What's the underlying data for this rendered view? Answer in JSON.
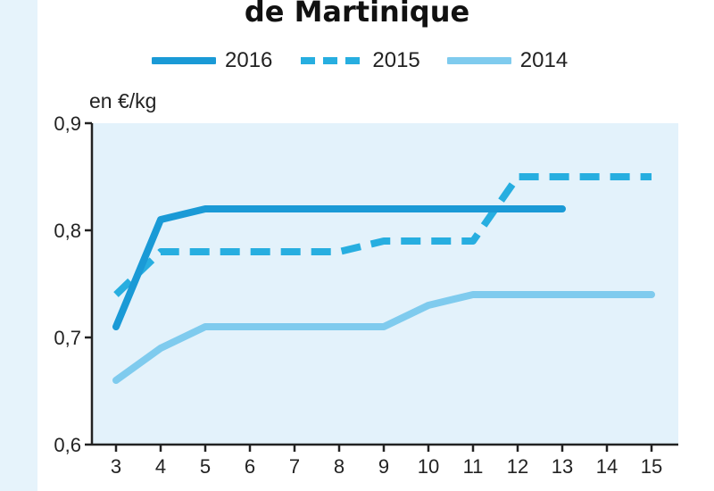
{
  "title": "de Martinique",
  "unit_label": "en €/kg",
  "colors": {
    "s2016": "#1a9ad6",
    "s2015": "#27aee0",
    "s2014": "#7fcbee",
    "plot_bg": "#e3f2fb",
    "axis": "#222222"
  },
  "legend": [
    {
      "label": "2016",
      "style": "solid"
    },
    {
      "label": "2015",
      "style": "dashed"
    },
    {
      "label": "2014",
      "style": "solid-light"
    }
  ],
  "chart_data": {
    "type": "line",
    "title": "de Martinique",
    "ylabel": "en €/kg",
    "xlabel": "",
    "xlim": [
      3,
      15
    ],
    "ylim": [
      0.6,
      0.9
    ],
    "x_ticks": [
      3,
      4,
      5,
      6,
      7,
      8,
      9,
      10,
      11,
      12,
      13,
      14,
      15
    ],
    "y_ticks": [
      0.6,
      0.7,
      0.8,
      0.9
    ],
    "y_tick_labels": [
      "0,6",
      "0,7",
      "0,8",
      "0,9"
    ],
    "grid": false,
    "legend_position": "top",
    "series": [
      {
        "name": "2016",
        "style": "solid",
        "x": [
          3,
          4,
          5,
          6,
          7,
          8,
          9,
          10,
          11,
          12,
          13
        ],
        "y": [
          0.71,
          0.81,
          0.82,
          0.82,
          0.82,
          0.82,
          0.82,
          0.82,
          0.82,
          0.82,
          0.82
        ]
      },
      {
        "name": "2015",
        "style": "dashed",
        "x": [
          3,
          4,
          5,
          6,
          7,
          8,
          9,
          10,
          11,
          12,
          13,
          14,
          15
        ],
        "y": [
          0.74,
          0.78,
          0.78,
          0.78,
          0.78,
          0.78,
          0.79,
          0.79,
          0.79,
          0.85,
          0.85,
          0.85,
          0.85
        ]
      },
      {
        "name": "2014",
        "style": "solid-light",
        "x": [
          3,
          4,
          5,
          6,
          7,
          8,
          9,
          10,
          11,
          12,
          13,
          14,
          15
        ],
        "y": [
          0.66,
          0.69,
          0.71,
          0.71,
          0.71,
          0.71,
          0.71,
          0.73,
          0.74,
          0.74,
          0.74,
          0.74,
          0.74
        ]
      }
    ]
  }
}
